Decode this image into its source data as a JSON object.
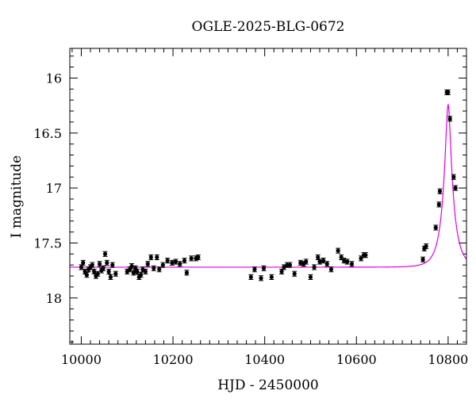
{
  "chart_data": {
    "type": "scatter",
    "title": "OGLE-2025-BLG-0672",
    "xlabel": "HJD - 2450000",
    "ylabel": "I magnitude",
    "xlim": [
      9975,
      10840
    ],
    "ylim": [
      18.42,
      15.73
    ],
    "y_inverted": true,
    "grid": false,
    "x_ticks": [
      10000,
      10200,
      10400,
      10600,
      10800
    ],
    "x_tick_labels": [
      "10000",
      "10200",
      "10400",
      "10600",
      "10800"
    ],
    "y_ticks": [
      16,
      16.5,
      17,
      17.5,
      18
    ],
    "y_tick_labels": [
      "16",
      "16.5",
      "17",
      "17.5",
      "18"
    ],
    "point_color": "#000000",
    "model_color": "#e000e0",
    "model": {
      "type": "microlensing",
      "baseline_mag": 17.72,
      "t0": 10800,
      "u0": 0.22,
      "tE": 23
    },
    "series": [
      {
        "name": "",
        "x": [
          10000,
          10004,
          10008,
          10012,
          10016,
          10020,
          10024,
          10028,
          10032,
          10036,
          10040,
          10044,
          10048,
          10052,
          10056,
          10060,
          10064,
          10068,
          10075,
          10100,
          10106,
          10110,
          10114,
          10118,
          10122,
          10126,
          10130,
          10134,
          10140,
          10145,
          10152,
          10158,
          10165,
          10170,
          10178,
          10188,
          10198,
          10206,
          10215,
          10225,
          10230,
          10240,
          10250,
          10255,
          10370,
          10378,
          10392,
          10398,
          10415,
          10437,
          10442,
          10449,
          10455,
          10465,
          10478,
          10485,
          10490,
          10500,
          10508,
          10516,
          10520,
          10528,
          10536,
          10545,
          10560,
          10567,
          10573,
          10580,
          10590,
          10610,
          10616,
          10620,
          10745,
          10748,
          10752,
          10773,
          10780,
          10782,
          10797,
          10800,
          10804,
          10812,
          10816
        ],
        "y": [
          17.72,
          17.68,
          17.76,
          17.79,
          17.74,
          17.72,
          17.7,
          17.76,
          17.8,
          17.78,
          17.69,
          17.75,
          17.73,
          17.6,
          17.68,
          17.76,
          17.81,
          17.7,
          17.78,
          17.76,
          17.74,
          17.71,
          17.77,
          17.73,
          17.76,
          17.81,
          17.79,
          17.74,
          17.76,
          17.69,
          17.63,
          17.73,
          17.63,
          17.74,
          17.7,
          17.66,
          17.68,
          17.67,
          17.69,
          17.66,
          17.77,
          17.64,
          17.64,
          17.63,
          17.81,
          17.74,
          17.82,
          17.73,
          17.81,
          17.76,
          17.72,
          17.7,
          17.7,
          17.78,
          17.68,
          17.69,
          17.67,
          17.81,
          17.72,
          17.63,
          17.67,
          17.66,
          17.69,
          17.74,
          17.57,
          17.63,
          17.66,
          17.67,
          17.69,
          17.64,
          17.61,
          17.61,
          17.65,
          17.55,
          17.53,
          17.36,
          17.15,
          17.03,
          16.13,
          16.13,
          16.37,
          16.9,
          17.0
        ]
      }
    ]
  }
}
